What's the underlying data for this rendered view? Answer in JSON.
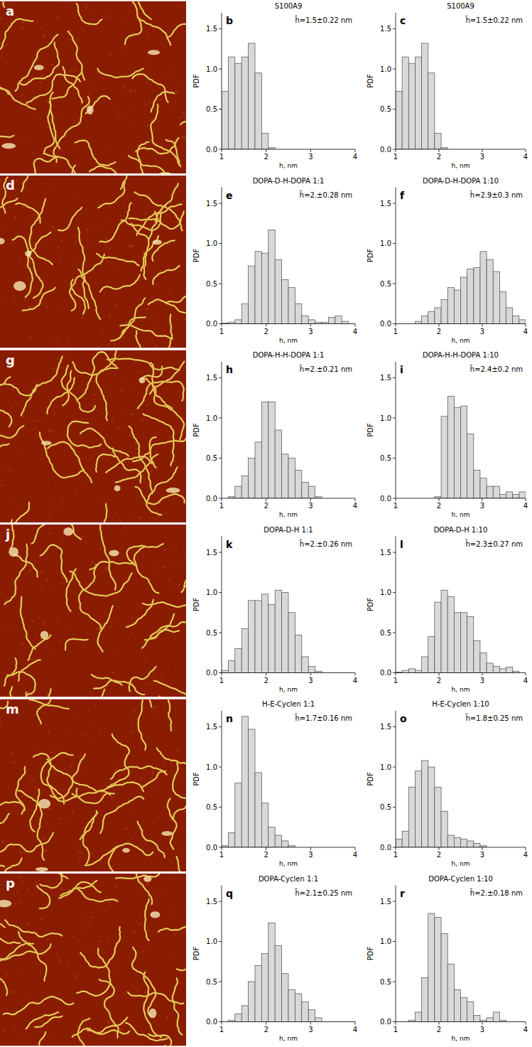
{
  "images": [
    {
      "label": "a"
    },
    {
      "label": "d"
    },
    {
      "label": "g"
    },
    {
      "label": "j"
    },
    {
      "label": "m"
    },
    {
      "label": "p"
    }
  ],
  "chart_data": [
    {
      "type": "histogram",
      "title": "S100A9",
      "label": "b",
      "annotation": "h̄=1.5±0.22 nm",
      "x_label": "h, nm",
      "y_label": "PDF",
      "color": "#d9d9d9",
      "bins": [
        1,
        1.15,
        1.3,
        1.45,
        1.6,
        1.75,
        1.9,
        2.05,
        2.2,
        2.35,
        2.5,
        2.65,
        2.8,
        2.95,
        3.1,
        3.25,
        3.4,
        3.55,
        3.7,
        3.85,
        4
      ],
      "values": [
        0.72,
        1.15,
        1.07,
        1.15,
        1.32,
        0.95,
        0.2,
        0.02,
        0,
        0,
        0,
        0,
        0,
        0,
        0,
        0,
        0,
        0,
        0,
        0
      ],
      "xlim": [
        1,
        4
      ],
      "ylim": [
        0,
        1.7
      ],
      "xticks": [
        1,
        2,
        3,
        4
      ],
      "yticks": [
        {
          "value": 0,
          "label": "0.0"
        },
        {
          "value": 0.5,
          "label": "0.5"
        },
        {
          "value": 1,
          "label": "1.0"
        },
        {
          "value": 1.5,
          "label": "1.5"
        }
      ]
    },
    {
      "type": "histogram",
      "title": "S100A9",
      "label": "c",
      "annotation": "h̄=1.5±0.22 nm",
      "x_label": "h, nm",
      "y_label": "PDF",
      "color": "#d9d9d9",
      "bins": [
        1,
        1.15,
        1.3,
        1.45,
        1.6,
        1.75,
        1.9,
        2.05,
        2.2,
        2.35,
        2.5,
        2.65,
        2.8,
        2.95,
        3.1,
        3.25,
        3.4,
        3.55,
        3.7,
        3.85,
        4
      ],
      "values": [
        0.72,
        1.15,
        1.07,
        1.15,
        1.32,
        0.95,
        0.2,
        0.02,
        0,
        0,
        0,
        0,
        0,
        0,
        0,
        0,
        0,
        0,
        0,
        0
      ],
      "xlim": [
        1,
        4
      ],
      "ylim": [
        0,
        1.7
      ],
      "xticks": [
        1,
        2,
        3,
        4
      ],
      "yticks": [
        {
          "value": 0,
          "label": "0.0"
        },
        {
          "value": 0.5,
          "label": "0.5"
        },
        {
          "value": 1,
          "label": "1.0"
        },
        {
          "value": 1.5,
          "label": "1.5"
        }
      ]
    },
    {
      "type": "histogram",
      "title": "DOPA-D-H-DOPA 1:1",
      "label": "e",
      "annotation": "h̄=2.±0.28 nm",
      "x_label": "h, nm",
      "y_label": "PDF",
      "color": "#d9d9d9",
      "bins": [
        1,
        1.15,
        1.3,
        1.45,
        1.6,
        1.75,
        1.9,
        2.05,
        2.2,
        2.35,
        2.5,
        2.65,
        2.8,
        2.95,
        3.1,
        3.25,
        3.4,
        3.55,
        3.7,
        3.85,
        4
      ],
      "values": [
        0.01,
        0.02,
        0.05,
        0.25,
        0.72,
        0.9,
        0.88,
        1.17,
        0.8,
        0.55,
        0.45,
        0.25,
        0.1,
        0.05,
        0.02,
        0.02,
        0.08,
        0.1,
        0.03,
        0
      ],
      "xlim": [
        1,
        4
      ],
      "ylim": [
        0,
        1.7
      ],
      "xticks": [
        1,
        2,
        3,
        4
      ],
      "yticks": [
        {
          "value": 0,
          "label": "0.0"
        },
        {
          "value": 0.5,
          "label": "0.5"
        },
        {
          "value": 1,
          "label": "1.0"
        },
        {
          "value": 1.5,
          "label": "1.5"
        }
      ]
    },
    {
      "type": "histogram",
      "title": "DOPA-D-H-DOPA 1:10",
      "label": "f",
      "annotation": "h̄=2.9±0.3 nm",
      "x_label": "h, nm",
      "y_label": "PDF",
      "color": "#d9d9d9",
      "bins": [
        1,
        1.15,
        1.3,
        1.45,
        1.6,
        1.75,
        1.9,
        2.05,
        2.2,
        2.35,
        2.5,
        2.65,
        2.8,
        2.95,
        3.1,
        3.25,
        3.4,
        3.55,
        3.7,
        3.85,
        4
      ],
      "values": [
        0,
        0,
        0,
        0.03,
        0.1,
        0.15,
        0.2,
        0.3,
        0.45,
        0.42,
        0.58,
        0.68,
        0.7,
        0.9,
        0.8,
        0.65,
        0.4,
        0.2,
        0.1,
        0.05
      ],
      "xlim": [
        1,
        4
      ],
      "ylim": [
        0,
        1.7
      ],
      "xticks": [
        1,
        2,
        3,
        4
      ],
      "yticks": [
        {
          "value": 0,
          "label": "0.0"
        },
        {
          "value": 0.5,
          "label": "0.5"
        },
        {
          "value": 1,
          "label": "1.0"
        },
        {
          "value": 1.5,
          "label": "1.5"
        }
      ]
    },
    {
      "type": "histogram",
      "title": "DOPA-H-H-DOPA 1:1",
      "label": "h",
      "annotation": "h̄=2.±0.21 nm",
      "x_label": "h, nm",
      "y_label": "PDF",
      "color": "#d9d9d9",
      "bins": [
        1,
        1.15,
        1.3,
        1.45,
        1.6,
        1.75,
        1.9,
        2.05,
        2.2,
        2.35,
        2.5,
        2.65,
        2.8,
        2.95,
        3.1,
        3.25,
        3.4,
        3.55,
        3.7,
        3.85,
        4
      ],
      "values": [
        0,
        0.02,
        0.15,
        0.28,
        0.5,
        0.7,
        1.2,
        1.2,
        0.85,
        0.55,
        0.5,
        0.35,
        0.2,
        0.15,
        0.02,
        0,
        0,
        0,
        0,
        0
      ],
      "xlim": [
        1,
        4
      ],
      "ylim": [
        0,
        1.7
      ],
      "xticks": [
        1,
        2,
        3,
        4
      ],
      "yticks": [
        {
          "value": 0,
          "label": "0.0"
        },
        {
          "value": 0.5,
          "label": "0.5"
        },
        {
          "value": 1,
          "label": "1.0"
        },
        {
          "value": 1.5,
          "label": "1.5"
        }
      ]
    },
    {
      "type": "histogram",
      "title": "DOPA-H-H-DOPA 1:10",
      "label": "i",
      "annotation": "h̄=2.4±0.2 nm",
      "x_label": "h, nm",
      "y_label": "PDF",
      "color": "#d9d9d9",
      "bins": [
        1,
        1.15,
        1.3,
        1.45,
        1.6,
        1.75,
        1.9,
        2.05,
        2.2,
        2.35,
        2.5,
        2.65,
        2.8,
        2.95,
        3.1,
        3.25,
        3.4,
        3.55,
        3.7,
        3.85,
        4
      ],
      "values": [
        0,
        0,
        0,
        0,
        0,
        0,
        0.02,
        1.02,
        1.27,
        1.13,
        1.15,
        0.8,
        0.35,
        0.25,
        0.15,
        0.15,
        0.05,
        0.08,
        0.05,
        0.08
      ],
      "xlim": [
        1,
        4
      ],
      "ylim": [
        0,
        1.7
      ],
      "xticks": [
        1,
        2,
        3,
        4
      ],
      "yticks": [
        {
          "value": 0,
          "label": "0.0"
        },
        {
          "value": 0.5,
          "label": "0.5"
        },
        {
          "value": 1,
          "label": "1.0"
        },
        {
          "value": 1.5,
          "label": "1.5"
        }
      ]
    },
    {
      "type": "histogram",
      "title": "DOPA-D-H 1:1",
      "label": "k",
      "annotation": "h̄=2.±0.26 nm",
      "x_label": "h, nm",
      "y_label": "PDF",
      "color": "#d9d9d9",
      "bins": [
        1,
        1.15,
        1.3,
        1.45,
        1.6,
        1.75,
        1.9,
        2.05,
        2.2,
        2.35,
        2.5,
        2.65,
        2.8,
        2.95,
        3.1,
        3.25,
        3.4,
        3.55,
        3.7,
        3.85,
        4
      ],
      "values": [
        0.03,
        0.15,
        0.3,
        0.55,
        0.9,
        0.9,
        0.98,
        0.85,
        1.03,
        1.0,
        0.75,
        0.47,
        0.2,
        0.08,
        0.02,
        0,
        0,
        0,
        0,
        0
      ],
      "xlim": [
        1,
        4
      ],
      "ylim": [
        0,
        1.7
      ],
      "xticks": [
        1,
        2,
        3,
        4
      ],
      "yticks": [
        {
          "value": 0,
          "label": "0.0"
        },
        {
          "value": 0.5,
          "label": "0.5"
        },
        {
          "value": 1,
          "label": "1.0"
        },
        {
          "value": 1.5,
          "label": "1.5"
        }
      ]
    },
    {
      "type": "histogram",
      "title": "DOPA-D-H 1:10",
      "label": "l",
      "annotation": "h̄=2.3±0.27 nm",
      "x_label": "h, nm",
      "y_label": "PDF",
      "color": "#d9d9d9",
      "bins": [
        1,
        1.15,
        1.3,
        1.45,
        1.6,
        1.75,
        1.9,
        2.05,
        2.2,
        2.35,
        2.5,
        2.65,
        2.8,
        2.95,
        3.1,
        3.25,
        3.4,
        3.55,
        3.7,
        3.85,
        4
      ],
      "values": [
        0.01,
        0.03,
        0.05,
        0.03,
        0.2,
        0.45,
        0.88,
        1.03,
        0.95,
        0.75,
        0.75,
        0.7,
        0.4,
        0.25,
        0.12,
        0.08,
        0.05,
        0.07,
        0.02,
        0
      ],
      "xlim": [
        1,
        4
      ],
      "ylim": [
        0,
        1.7
      ],
      "xticks": [
        1,
        2,
        3,
        4
      ],
      "yticks": [
        {
          "value": 0,
          "label": "0.0"
        },
        {
          "value": 0.5,
          "label": "0.5"
        },
        {
          "value": 1,
          "label": "1.0"
        },
        {
          "value": 1.5,
          "label": "1.5"
        }
      ]
    },
    {
      "type": "histogram",
      "title": "H-E-Cyclen 1:1",
      "label": "n",
      "annotation": "h̄=1.7±0.16 nm",
      "x_label": "h, nm",
      "y_label": "PDF",
      "color": "#d9d9d9",
      "bins": [
        1,
        1.15,
        1.3,
        1.45,
        1.6,
        1.75,
        1.9,
        2.05,
        2.2,
        2.35,
        2.5,
        2.65,
        2.8,
        2.95,
        3.1,
        3.25,
        3.4,
        3.55,
        3.7,
        3.85,
        4
      ],
      "values": [
        0.02,
        0.18,
        0.8,
        1.63,
        1.47,
        0.93,
        0.55,
        0.25,
        0.15,
        0.08,
        0.02,
        0,
        0,
        0,
        0,
        0,
        0,
        0,
        0,
        0
      ],
      "xlim": [
        1,
        4
      ],
      "ylim": [
        0,
        1.7
      ],
      "xticks": [
        1,
        2,
        3,
        4
      ],
      "yticks": [
        {
          "value": 0,
          "label": "0.0"
        },
        {
          "value": 0.5,
          "label": "0.5"
        },
        {
          "value": 1,
          "label": "1.0"
        },
        {
          "value": 1.5,
          "label": "1.5"
        }
      ]
    },
    {
      "type": "histogram",
      "title": "H-E-Cyclen 1:10",
      "label": "o",
      "annotation": "h̄=1.8±0.25 nm",
      "x_label": "h, nm",
      "y_label": "PDF",
      "color": "#d9d9d9",
      "bins": [
        1,
        1.15,
        1.3,
        1.45,
        1.6,
        1.75,
        1.9,
        2.05,
        2.2,
        2.35,
        2.5,
        2.65,
        2.8,
        2.95,
        3.1,
        3.25,
        3.4,
        3.55,
        3.7,
        3.85,
        4
      ],
      "values": [
        0.1,
        0.2,
        0.75,
        0.95,
        1.08,
        1.0,
        0.75,
        0.45,
        0.15,
        0.12,
        0.1,
        0.08,
        0.05,
        0.02,
        0,
        0,
        0,
        0,
        0,
        0
      ],
      "xlim": [
        1,
        4
      ],
      "ylim": [
        0,
        1.7
      ],
      "xticks": [
        1,
        2,
        3,
        4
      ],
      "yticks": [
        {
          "value": 0,
          "label": "0.0"
        },
        {
          "value": 0.5,
          "label": "0.5"
        },
        {
          "value": 1,
          "label": "1.0"
        },
        {
          "value": 1.5,
          "label": "1.5"
        }
      ]
    },
    {
      "type": "histogram",
      "title": "DOPA-Cyclen 1:1",
      "label": "q",
      "annotation": "h̄=2.1±0.25 nm",
      "x_label": "h, nm",
      "y_label": "PDF",
      "color": "#d9d9d9",
      "bins": [
        1,
        1.15,
        1.3,
        1.45,
        1.6,
        1.75,
        1.9,
        2.05,
        2.2,
        2.35,
        2.5,
        2.65,
        2.8,
        2.95,
        3.1,
        3.25,
        3.4,
        3.55,
        3.7,
        3.85,
        4
      ],
      "values": [
        0,
        0.02,
        0.1,
        0.2,
        0.5,
        0.7,
        0.85,
        1.23,
        0.95,
        0.6,
        0.4,
        0.35,
        0.25,
        0.15,
        0.05,
        0,
        0,
        0,
        0,
        0
      ],
      "xlim": [
        1,
        4
      ],
      "ylim": [
        0,
        1.7
      ],
      "xticks": [
        1,
        2,
        3,
        4
      ],
      "yticks": [
        {
          "value": 0,
          "label": "0.0"
        },
        {
          "value": 0.5,
          "label": "0.5"
        },
        {
          "value": 1,
          "label": "1.0"
        },
        {
          "value": 1.5,
          "label": "1.5"
        }
      ]
    },
    {
      "type": "histogram",
      "title": "DOPA-Cyclen 1:10",
      "label": "r",
      "annotation": "h̄=2.±0.18 nm",
      "x_label": "h, nm",
      "y_label": "PDF",
      "color": "#d9d9d9",
      "bins": [
        1,
        1.15,
        1.3,
        1.45,
        1.6,
        1.75,
        1.9,
        2.05,
        2.2,
        2.35,
        2.5,
        2.65,
        2.8,
        2.95,
        3.1,
        3.25,
        3.4,
        3.55,
        3.7,
        3.85,
        4
      ],
      "values": [
        0,
        0,
        0.02,
        0.12,
        0.55,
        1.35,
        1.3,
        1.1,
        0.72,
        0.4,
        0.3,
        0.25,
        0.08,
        0.02,
        0.05,
        0.12,
        0.02,
        0,
        0,
        0
      ],
      "xlim": [
        1,
        4
      ],
      "ylim": [
        0,
        1.7
      ],
      "xticks": [
        1,
        2,
        3,
        4
      ],
      "yticks": [
        {
          "value": 0,
          "label": "0.0"
        },
        {
          "value": 0.5,
          "label": "0.5"
        },
        {
          "value": 1,
          "label": "1.0"
        },
        {
          "value": 1.5,
          "label": "1.5"
        }
      ]
    }
  ]
}
